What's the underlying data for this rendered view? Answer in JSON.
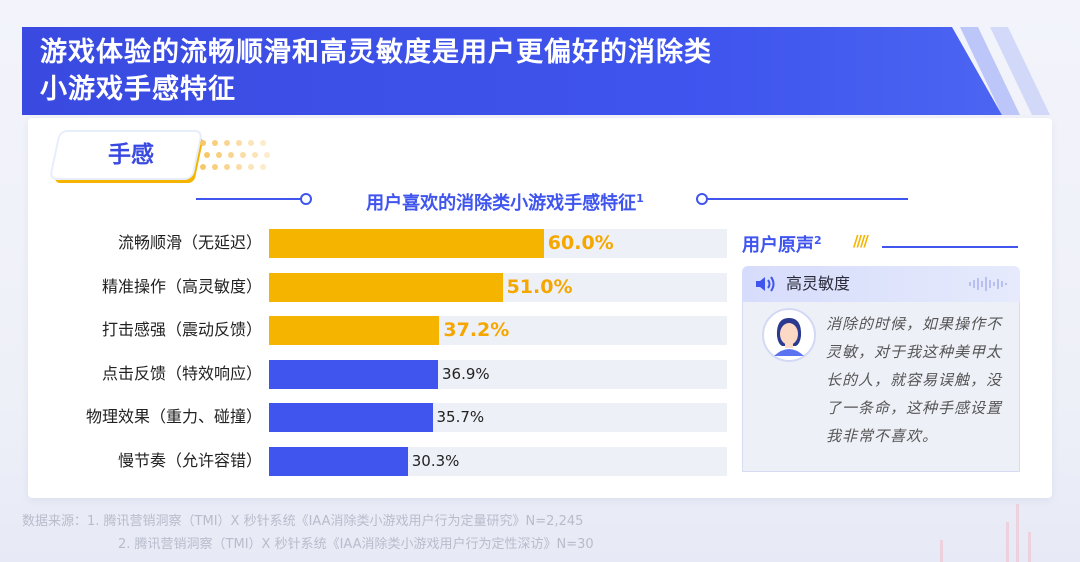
{
  "header": {
    "title_line1": "游戏体验的流畅顺滑和高灵敏度是用户更偏好的消除类",
    "title_line2": "小游戏手感特征"
  },
  "tag": {
    "label": "手感"
  },
  "chart_data": {
    "type": "bar",
    "orientation": "horizontal",
    "title": "用户喜欢的消除类小游戏手感特征",
    "title_superscript": "1",
    "categories": [
      "流畅顺滑（无延迟）",
      "精准操作（高灵敏度）",
      "打击感强（震动反馈）",
      "点击反馈（特效响应）",
      "物理效果（重力、碰撞）",
      "慢节奏（允许容错）"
    ],
    "values": [
      60.0,
      51.0,
      37.2,
      36.9,
      35.7,
      30.3
    ],
    "labels": [
      "60.0%",
      "51.0%",
      "37.2%",
      "36.9%",
      "35.7%",
      "30.3%"
    ],
    "highlighted": [
      true,
      true,
      true,
      false,
      false,
      false
    ],
    "xlim": [
      0,
      100
    ],
    "colors": {
      "highlight": "#F5B400",
      "normal": "#3F55EE",
      "track": "#EEF0F7",
      "highlight_text": "#F5A700"
    },
    "grid": false
  },
  "voice": {
    "heading": "用户原声",
    "heading_superscript": "2",
    "decor_slashes": "////",
    "topic": "高灵敏度",
    "quote": "消除的时候，如果操作不灵敏，对于我这种美甲太长的人，就容易误触，没了一条命，这种手感设置我非常不喜欢。",
    "icons": [
      "speaker-icon",
      "sound-wave-icon",
      "user-avatar-icon"
    ]
  },
  "footer": {
    "source_line1": "数据来源：1. 腾讯营销洞察（TMI）X 秒针系统《IAA消除类小游戏用户行为定量研究》N=2,245",
    "source_line2": "2. 腾讯营销洞察（TMI）X 秒针系统《IAA消除类小游戏用户行为定性深访》N=30"
  }
}
